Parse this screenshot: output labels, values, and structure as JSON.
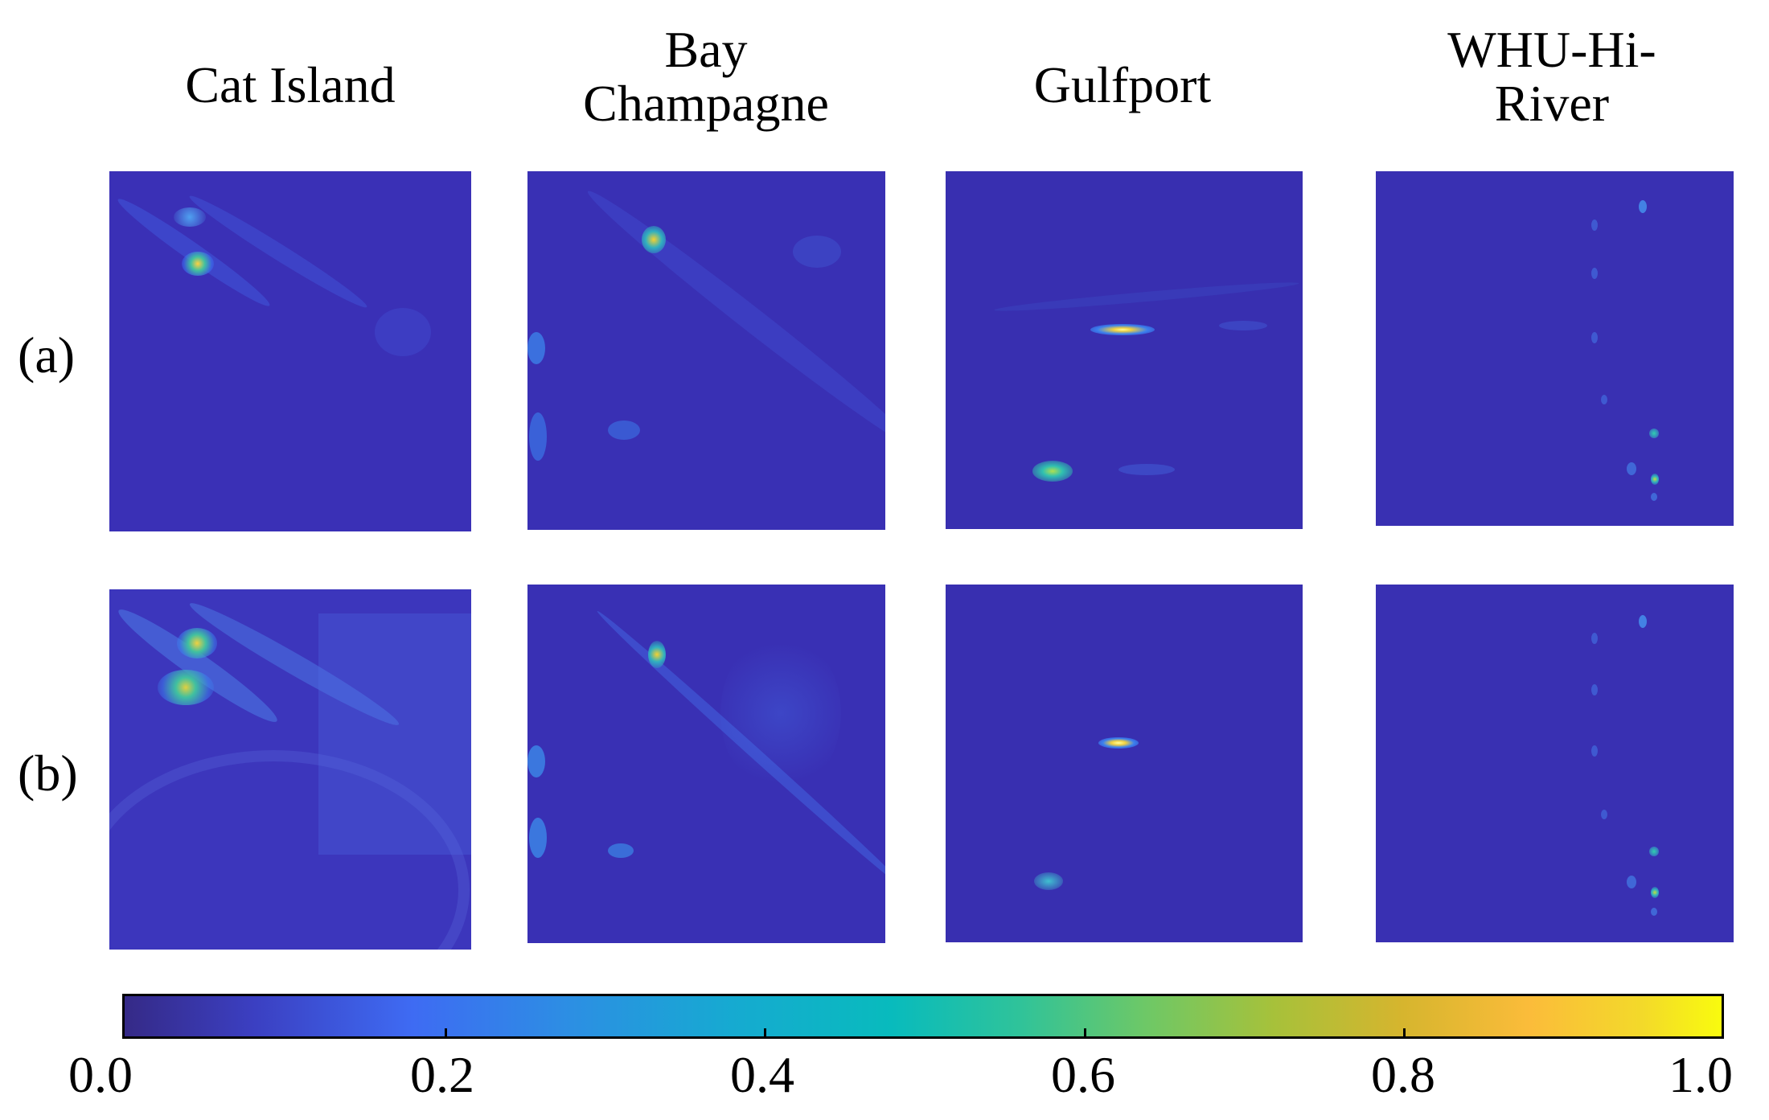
{
  "columns": [
    "Cat Island",
    "Bay Champagne",
    "Gulfport",
    "WHU-Hi-River"
  ],
  "rows": [
    "(a)",
    "(b)"
  ],
  "colorbar": {
    "ticks": [
      "0.0",
      "0.2",
      "0.4",
      "0.6",
      "0.8",
      "1.0"
    ],
    "range": [
      0.0,
      1.0
    ],
    "colormap": "parula"
  }
}
